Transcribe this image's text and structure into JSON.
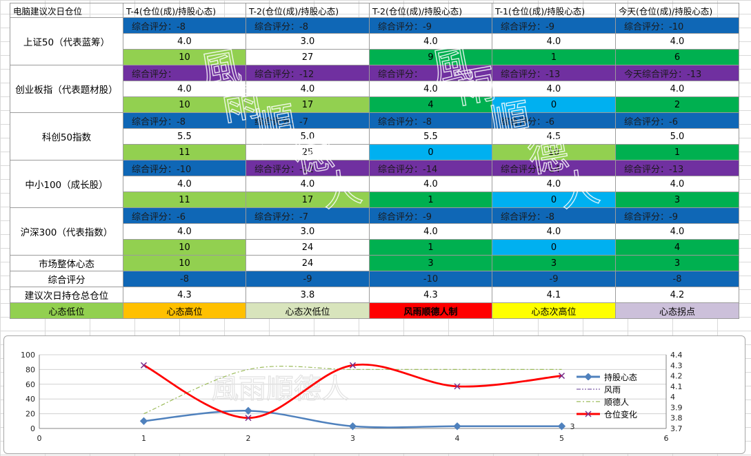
{
  "table": {
    "corner": "电脑建议次日仓位",
    "columns": [
      "T-4(仓位(成)/持股心态)",
      "T-2(仓位(成)/持股心态)",
      "T-2(仓位(成)/持股心态)",
      "T-1(仓位(成)/持股心态)",
      "今天(仓位(成)/持股心态)"
    ],
    "indices": [
      {
        "name": "上证50（代表蓝筹）",
        "scores": [
          "综合评分：-8",
          "综合评分：-8",
          "综合评分：-9",
          "综合评分：-9",
          "综合评分：-10"
        ],
        "score_colors": [
          "blue",
          "blue",
          "blue",
          "blue",
          "blue"
        ],
        "positions": [
          "4.0",
          "3.0",
          "4.0",
          "4.0",
          "4.0"
        ],
        "moods": [
          "10",
          "27",
          "9",
          "1",
          "6"
        ],
        "mood_colors": [
          "lgreen",
          "white",
          "green",
          "green",
          "green"
        ]
      },
      {
        "name": "创业板指（代表题材股）",
        "scores": [
          "综合评分：",
          "综合评分：-12",
          "综合评分：",
          "综合评分：-13",
          "今天综合评分：-13"
        ],
        "score_colors": [
          "purple",
          "purple",
          "purple",
          "purple",
          "purple"
        ],
        "positions": [
          "4.0",
          "4.0",
          "4.0",
          "4.0",
          "4.0"
        ],
        "moods": [
          "10",
          "17",
          "4",
          "0",
          "2"
        ],
        "mood_colors": [
          "lgreen",
          "lgreen",
          "green",
          "cyan",
          "green"
        ]
      },
      {
        "name": "科创50指数",
        "scores": [
          "综合评分：-8",
          "综合评分：-7",
          "综合评分：-8",
          "综合评分：-6",
          "综合评分：-6"
        ],
        "score_colors": [
          "blue",
          "blue",
          "blue",
          "blue",
          "blue"
        ],
        "positions": [
          "5.5",
          "5.0",
          "5.5",
          "4.5",
          "5.0"
        ],
        "moods": [
          "11",
          "25",
          "0",
          "10",
          "1"
        ],
        "mood_colors": [
          "lgreen",
          "white",
          "cyan",
          "lgreen",
          "green"
        ]
      },
      {
        "name": "中小100（成长股）",
        "scores": [
          "综合评分：-10",
          "综合评分：-12",
          "综合评分：-14",
          "综合评分：-14",
          "综合评分：-13"
        ],
        "score_colors": [
          "blue",
          "purple",
          "purple",
          "purple",
          "purple"
        ],
        "positions": [
          "4.0",
          "4.0",
          "4.0",
          "4.0",
          "4.0"
        ],
        "moods": [
          "11",
          "17",
          "1",
          "0",
          "3"
        ],
        "mood_colors": [
          "lgreen",
          "lgreen",
          "green",
          "cyan",
          "green"
        ]
      },
      {
        "name": "沪深300（代表指数）",
        "scores": [
          "综合评分：-6",
          "综合评分：-7",
          "综合评分：-9",
          "综合评分：-8",
          "综合评分：-9"
        ],
        "score_colors": [
          "blue",
          "blue",
          "blue",
          "blue",
          "blue"
        ],
        "positions": [
          "4.0",
          "3.0",
          "4.0",
          "4.0",
          "4.0"
        ],
        "moods": [
          "10",
          "24",
          "1",
          "0",
          "4"
        ],
        "mood_colors": [
          "lgreen",
          "white",
          "green",
          "cyan",
          "green"
        ]
      }
    ],
    "summary": {
      "market_label": "市场整体心态",
      "market_values": [
        "10",
        "24",
        "3",
        "3",
        "3"
      ],
      "market_colors": [
        "lgreen",
        "white",
        "green",
        "green",
        "green"
      ],
      "score_label": "综合评分",
      "score_values": [
        "-8",
        "-9",
        "-10",
        "-9",
        "-8"
      ],
      "position_label": "建议次日持仓总仓位",
      "position_values": [
        "4.3",
        "3.8",
        "4.3",
        "4.1",
        "4.2"
      ]
    },
    "legend_cells": [
      {
        "label": "心态低位",
        "color": "#92d050"
      },
      {
        "label": "心态高位",
        "color": "#ffc000"
      },
      {
        "label": "心态次低位",
        "color": "#d8e4bc"
      },
      {
        "label": "风雨顺德人制",
        "color": "#ff0000"
      },
      {
        "label": "心态次高位",
        "color": "#ffff00"
      },
      {
        "label": "心态拐点",
        "color": "#ccc0da"
      }
    ]
  },
  "watermark": {
    "text": "風雨順德人"
  },
  "chart_data": {
    "type": "line",
    "x": [
      1,
      2,
      3,
      4,
      5
    ],
    "xlim": [
      0,
      6
    ],
    "x_ticks": [
      "0",
      "1",
      "2",
      "3",
      "4",
      "5",
      "6"
    ],
    "ylim_left": [
      0,
      100
    ],
    "y_left_ticks": [
      "0",
      "20",
      "40",
      "60",
      "80",
      "100"
    ],
    "ylim_right": [
      3.7,
      4.4
    ],
    "y_right_ticks": [
      "3.7",
      "3.8",
      "3.9",
      "4",
      "4.1",
      "4.2",
      "4.3",
      "4.4"
    ],
    "grid": true,
    "legend_position": "right",
    "series": [
      {
        "name": "持股心态",
        "axis": "left",
        "values": [
          10,
          24,
          3,
          3,
          3
        ],
        "color": "#4f81bd"
      },
      {
        "name": "风雨",
        "axis": "left",
        "values": [
          null,
          null,
          null,
          null,
          null
        ],
        "color": "#7f5fa9"
      },
      {
        "name": "顺德人",
        "axis": "left",
        "values": [
          20,
          80,
          80,
          80,
          80
        ],
        "color": "#9bbb59"
      },
      {
        "name": "仓位变化",
        "axis": "right",
        "values": [
          4.3,
          3.8,
          4.3,
          4.1,
          4.2
        ],
        "color": "#ff0000"
      }
    ],
    "data_label": "3",
    "watermark_text": "風雨順德人"
  }
}
